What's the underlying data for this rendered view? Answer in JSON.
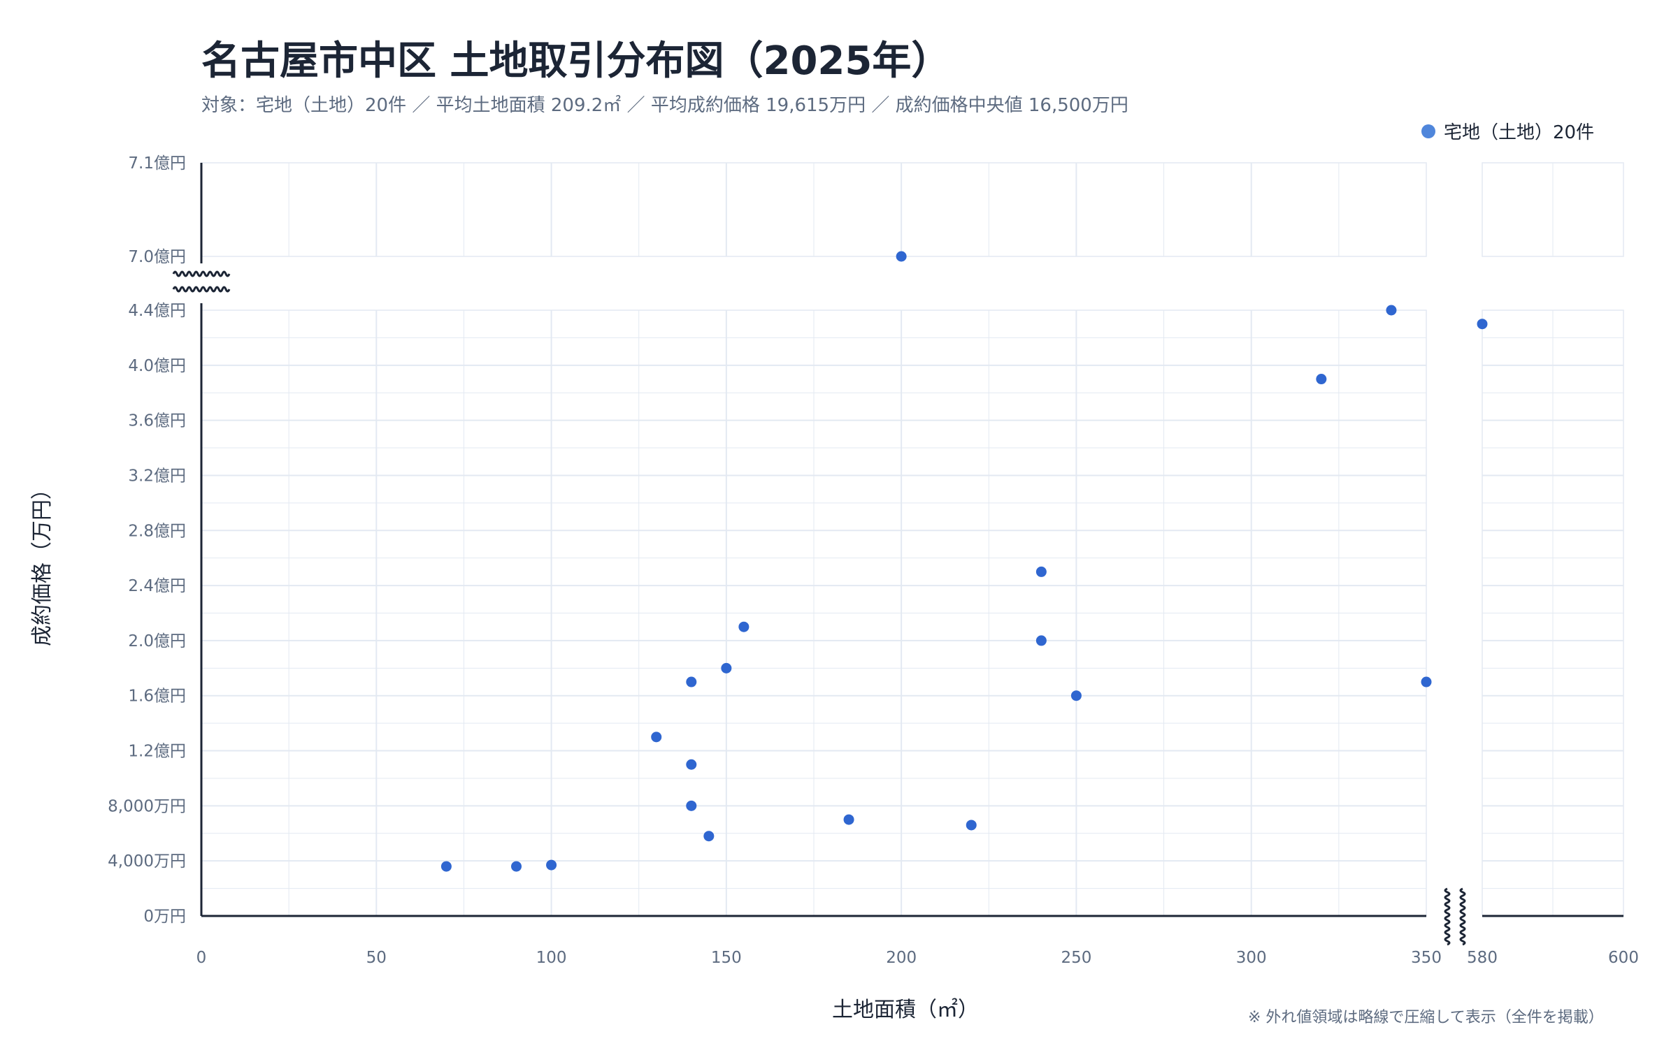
{
  "title": "名古屋市中区 土地取引分布図（2025年）",
  "subtitle": "対象：宅地（土地）20件 ／ 平均土地面積 209.2㎡ ／ 平均成約価格 19,615万円 ／ 成約価格中央値 16,500万円",
  "legend_label": "宅地（土地）20件",
  "footnote": "※ 外れ値領域は略線で圧縮して表示（全件を掲載）",
  "colors": {
    "point": "#2f66d0",
    "legend": "#4f86db",
    "grid": "#e3e9f2",
    "axis": "#1c2535"
  },
  "chart_data": {
    "type": "scatter",
    "xlabel": "土地面積（㎡）",
    "ylabel": "成約価格（万円）",
    "grid": true,
    "legend_placement": "top-right",
    "x_axis_break": [
      350,
      580
    ],
    "y_axis_break": [
      44000,
      70000
    ],
    "xlim": [
      0,
      600
    ],
    "ylim": [
      0,
      71000
    ],
    "x_ticks": [
      0,
      50,
      100,
      150,
      200,
      250,
      300,
      350,
      580,
      600
    ],
    "x_tick_labels": [
      "0",
      "50",
      "100",
      "150",
      "200",
      "250",
      "300",
      "350",
      "580",
      "600"
    ],
    "y_ticks": [
      0,
      4000,
      8000,
      12000,
      16000,
      20000,
      24000,
      28000,
      32000,
      36000,
      40000,
      44000,
      70000,
      71000
    ],
    "y_tick_labels": [
      "0万円",
      "4,000万円",
      "8,000万円",
      "1.2億円",
      "1.6億円",
      "2.0億円",
      "2.4億円",
      "2.8億円",
      "3.2億円",
      "3.6億円",
      "4.0億円",
      "4.4億円",
      "7.0億円",
      "7.1億円"
    ],
    "series": [
      {
        "name": "宅地（土地）20件",
        "points": [
          {
            "x": 70,
            "y": 3600
          },
          {
            "x": 90,
            "y": 3600
          },
          {
            "x": 100,
            "y": 3700
          },
          {
            "x": 130,
            "y": 13000
          },
          {
            "x": 140,
            "y": 17000
          },
          {
            "x": 140,
            "y": 11000
          },
          {
            "x": 140,
            "y": 8000
          },
          {
            "x": 145,
            "y": 5800
          },
          {
            "x": 150,
            "y": 18000
          },
          {
            "x": 155,
            "y": 21000
          },
          {
            "x": 185,
            "y": 7000
          },
          {
            "x": 200,
            "y": 70000
          },
          {
            "x": 220,
            "y": 6600
          },
          {
            "x": 240,
            "y": 25000
          },
          {
            "x": 240,
            "y": 20000
          },
          {
            "x": 250,
            "y": 16000
          },
          {
            "x": 320,
            "y": 39000
          },
          {
            "x": 340,
            "y": 44000
          },
          {
            "x": 350,
            "y": 17000
          },
          {
            "x": 580,
            "y": 43000
          }
        ]
      }
    ]
  }
}
